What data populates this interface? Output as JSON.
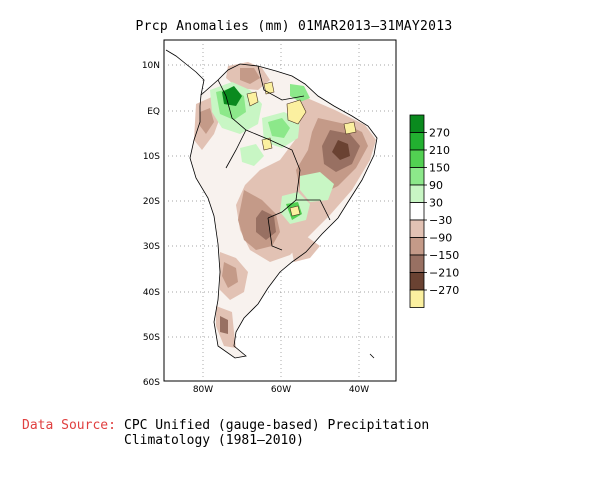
{
  "title": "Prcp Anomalies (mm) 01MAR2013–31MAY2013",
  "axes": {
    "lat_labels": [
      "10N",
      "EQ",
      "10S",
      "20S",
      "30S",
      "40S",
      "50S",
      "60S"
    ],
    "lon_labels": [
      "80W",
      "60W",
      "40W"
    ]
  },
  "colorbar": {
    "labels": [
      "270",
      "210",
      "150",
      "90",
      "30",
      "−30",
      "−90",
      "−150",
      "−210",
      "−270"
    ],
    "colors": [
      "#0a8a1e",
      "#22b030",
      "#52d052",
      "#8ce88a",
      "#c8f6c4",
      "#ffffff",
      "#e2c2b4",
      "#c49a88",
      "#987062",
      "#6a4232",
      "#fbf0a0"
    ]
  },
  "source": {
    "label": "Data Source:",
    "line1": "CPC Unified (gauge-based) Precipitation",
    "line2": "Climatology (1981–2010)"
  }
}
